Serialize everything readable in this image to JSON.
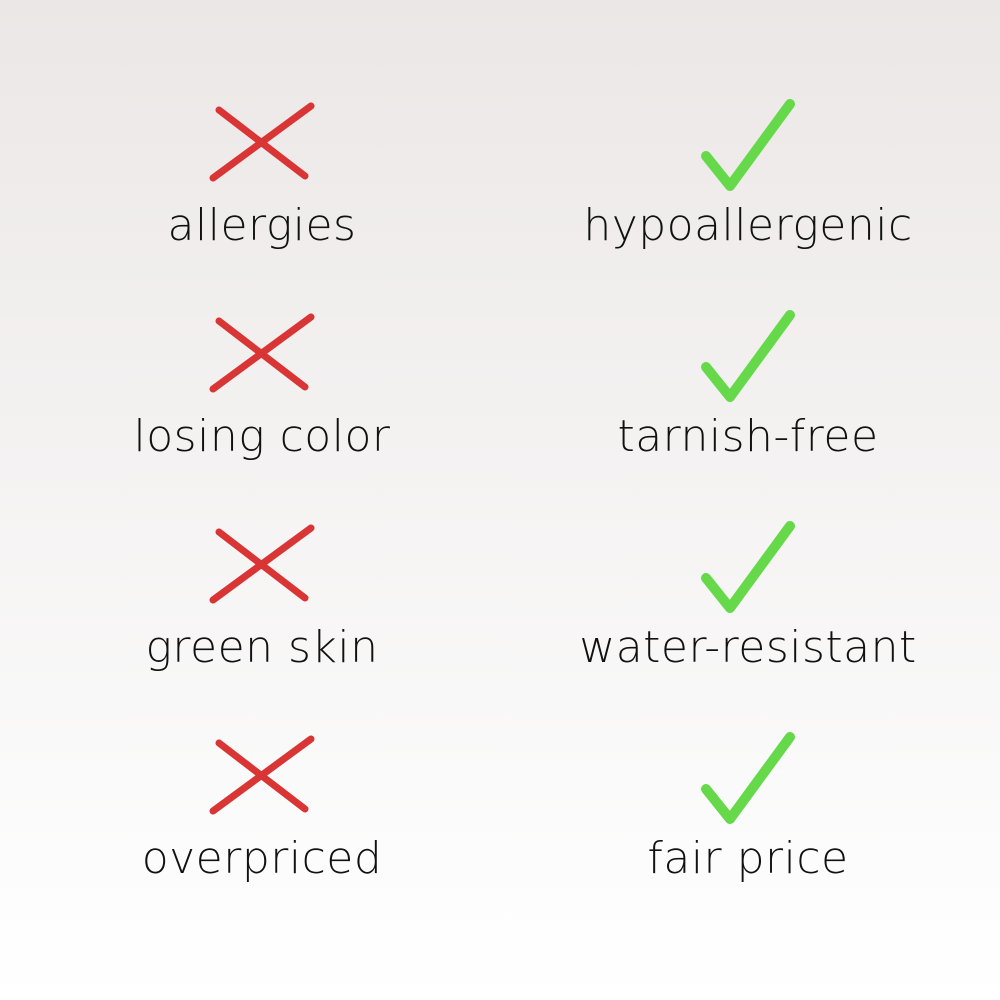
{
  "colors": {
    "cross": "#d93535",
    "check": "#66d94a",
    "background_top": "#ebe7e6",
    "background_bottom": "#ffffff"
  },
  "negatives": [
    {
      "icon": "cross-icon",
      "label": "allergies"
    },
    {
      "icon": "cross-icon",
      "label": "losing color"
    },
    {
      "icon": "cross-icon",
      "label": "green skin"
    },
    {
      "icon": "cross-icon",
      "label": "overpriced"
    }
  ],
  "positives": [
    {
      "icon": "check-icon",
      "label": "hypoallergenic"
    },
    {
      "icon": "check-icon",
      "label": "tarnish-free"
    },
    {
      "icon": "check-icon",
      "label": "water-resistant"
    },
    {
      "icon": "check-icon",
      "label": "fair price"
    }
  ]
}
